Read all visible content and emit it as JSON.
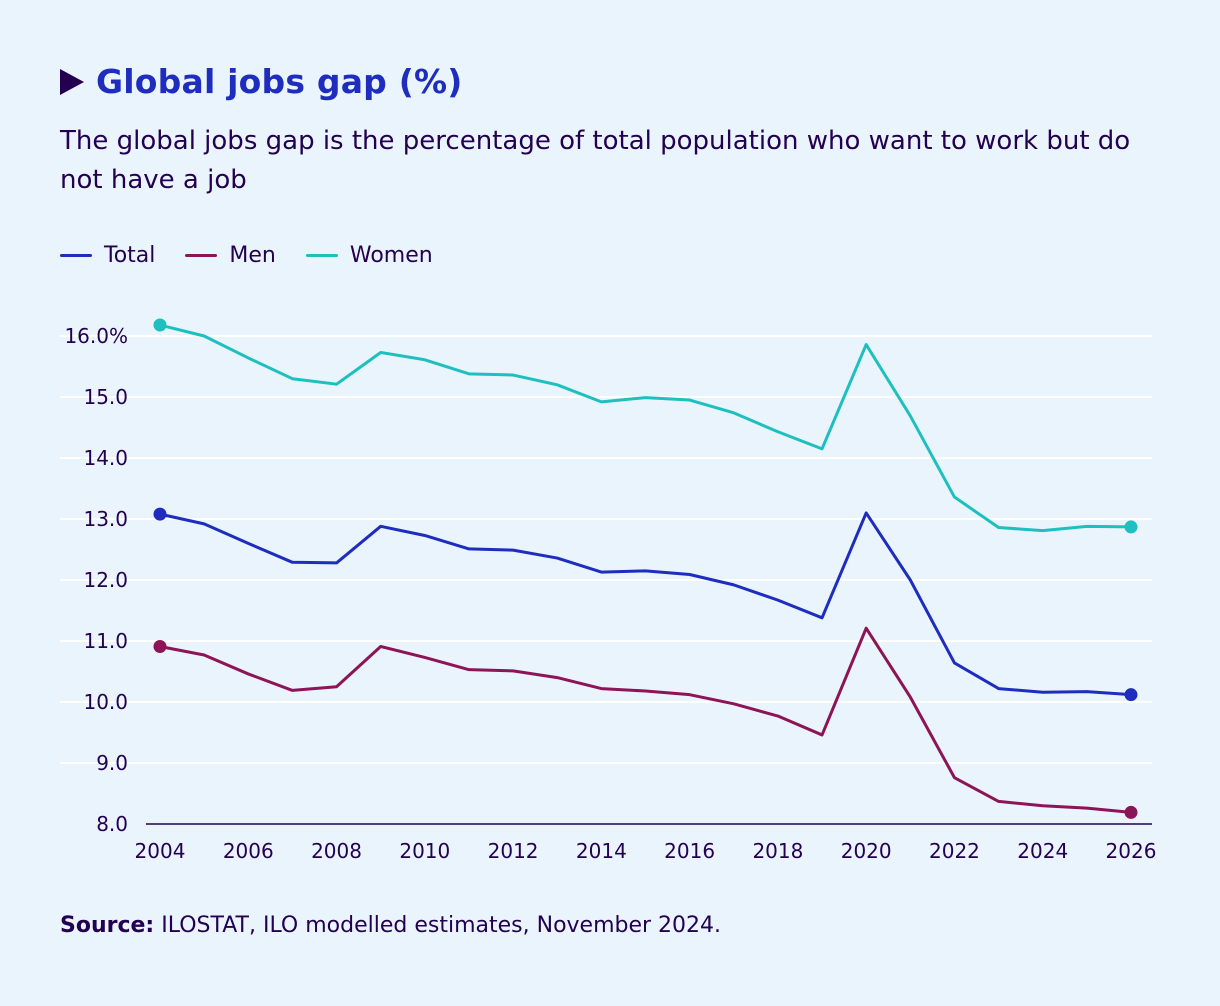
{
  "header": {
    "title": "Global jobs gap (%)",
    "subtitle": "The global jobs gap is the percentage of total population who want to work but do not have a job"
  },
  "legend": [
    {
      "label": "Total",
      "color": "#1e2dbe"
    },
    {
      "label": "Men",
      "color": "#8c1457"
    },
    {
      "label": "Women",
      "color": "#1dbfbf"
    }
  ],
  "footer": {
    "source_label": "Source:",
    "source_text": "ILOSTAT, ILO modelled estimates, November 2024."
  },
  "chart_data": {
    "type": "line",
    "title": "Global jobs gap (%)",
    "xlabel": "",
    "ylabel": "",
    "x": [
      2004,
      2005,
      2006,
      2007,
      2008,
      2009,
      2010,
      2011,
      2012,
      2013,
      2014,
      2015,
      2016,
      2017,
      2018,
      2019,
      2020,
      2021,
      2022,
      2023,
      2024,
      2025,
      2026
    ],
    "xticks": [
      "2004",
      "2006",
      "2008",
      "2010",
      "2012",
      "2014",
      "2016",
      "2018",
      "2020",
      "2022",
      "2024",
      "2026"
    ],
    "yticks": [
      "16.0%",
      "15.0",
      "14.0",
      "13.0",
      "12.0",
      "11.0",
      "10.0",
      "9.0",
      "8.0"
    ],
    "ylim": [
      8,
      16
    ],
    "xlim": [
      2004,
      2026
    ],
    "grid": true,
    "legend_position": "top-left",
    "series": [
      {
        "name": "Total",
        "color": "#1e2dbe",
        "values": [
          13.08,
          12.92,
          12.6,
          12.29,
          12.28,
          12.88,
          12.73,
          12.51,
          12.49,
          12.36,
          12.13,
          12.15,
          12.09,
          11.92,
          11.67,
          11.38,
          13.1,
          12.0,
          10.64,
          10.22,
          10.16,
          10.17,
          10.12
        ]
      },
      {
        "name": "Men",
        "color": "#8c1457",
        "values": [
          10.91,
          10.77,
          10.46,
          10.19,
          10.25,
          10.91,
          10.73,
          10.53,
          10.51,
          10.4,
          10.22,
          10.18,
          10.12,
          9.97,
          9.77,
          9.46,
          11.21,
          10.08,
          8.76,
          8.37,
          8.3,
          8.26,
          8.19
        ]
      },
      {
        "name": "Women",
        "color": "#1dbfbf",
        "values": [
          16.18,
          16.0,
          15.64,
          15.3,
          15.21,
          15.73,
          15.61,
          15.38,
          15.36,
          15.2,
          14.92,
          14.99,
          14.95,
          14.74,
          14.43,
          14.15,
          15.86,
          14.69,
          13.36,
          12.86,
          12.81,
          12.88,
          12.87
        ]
      }
    ]
  }
}
